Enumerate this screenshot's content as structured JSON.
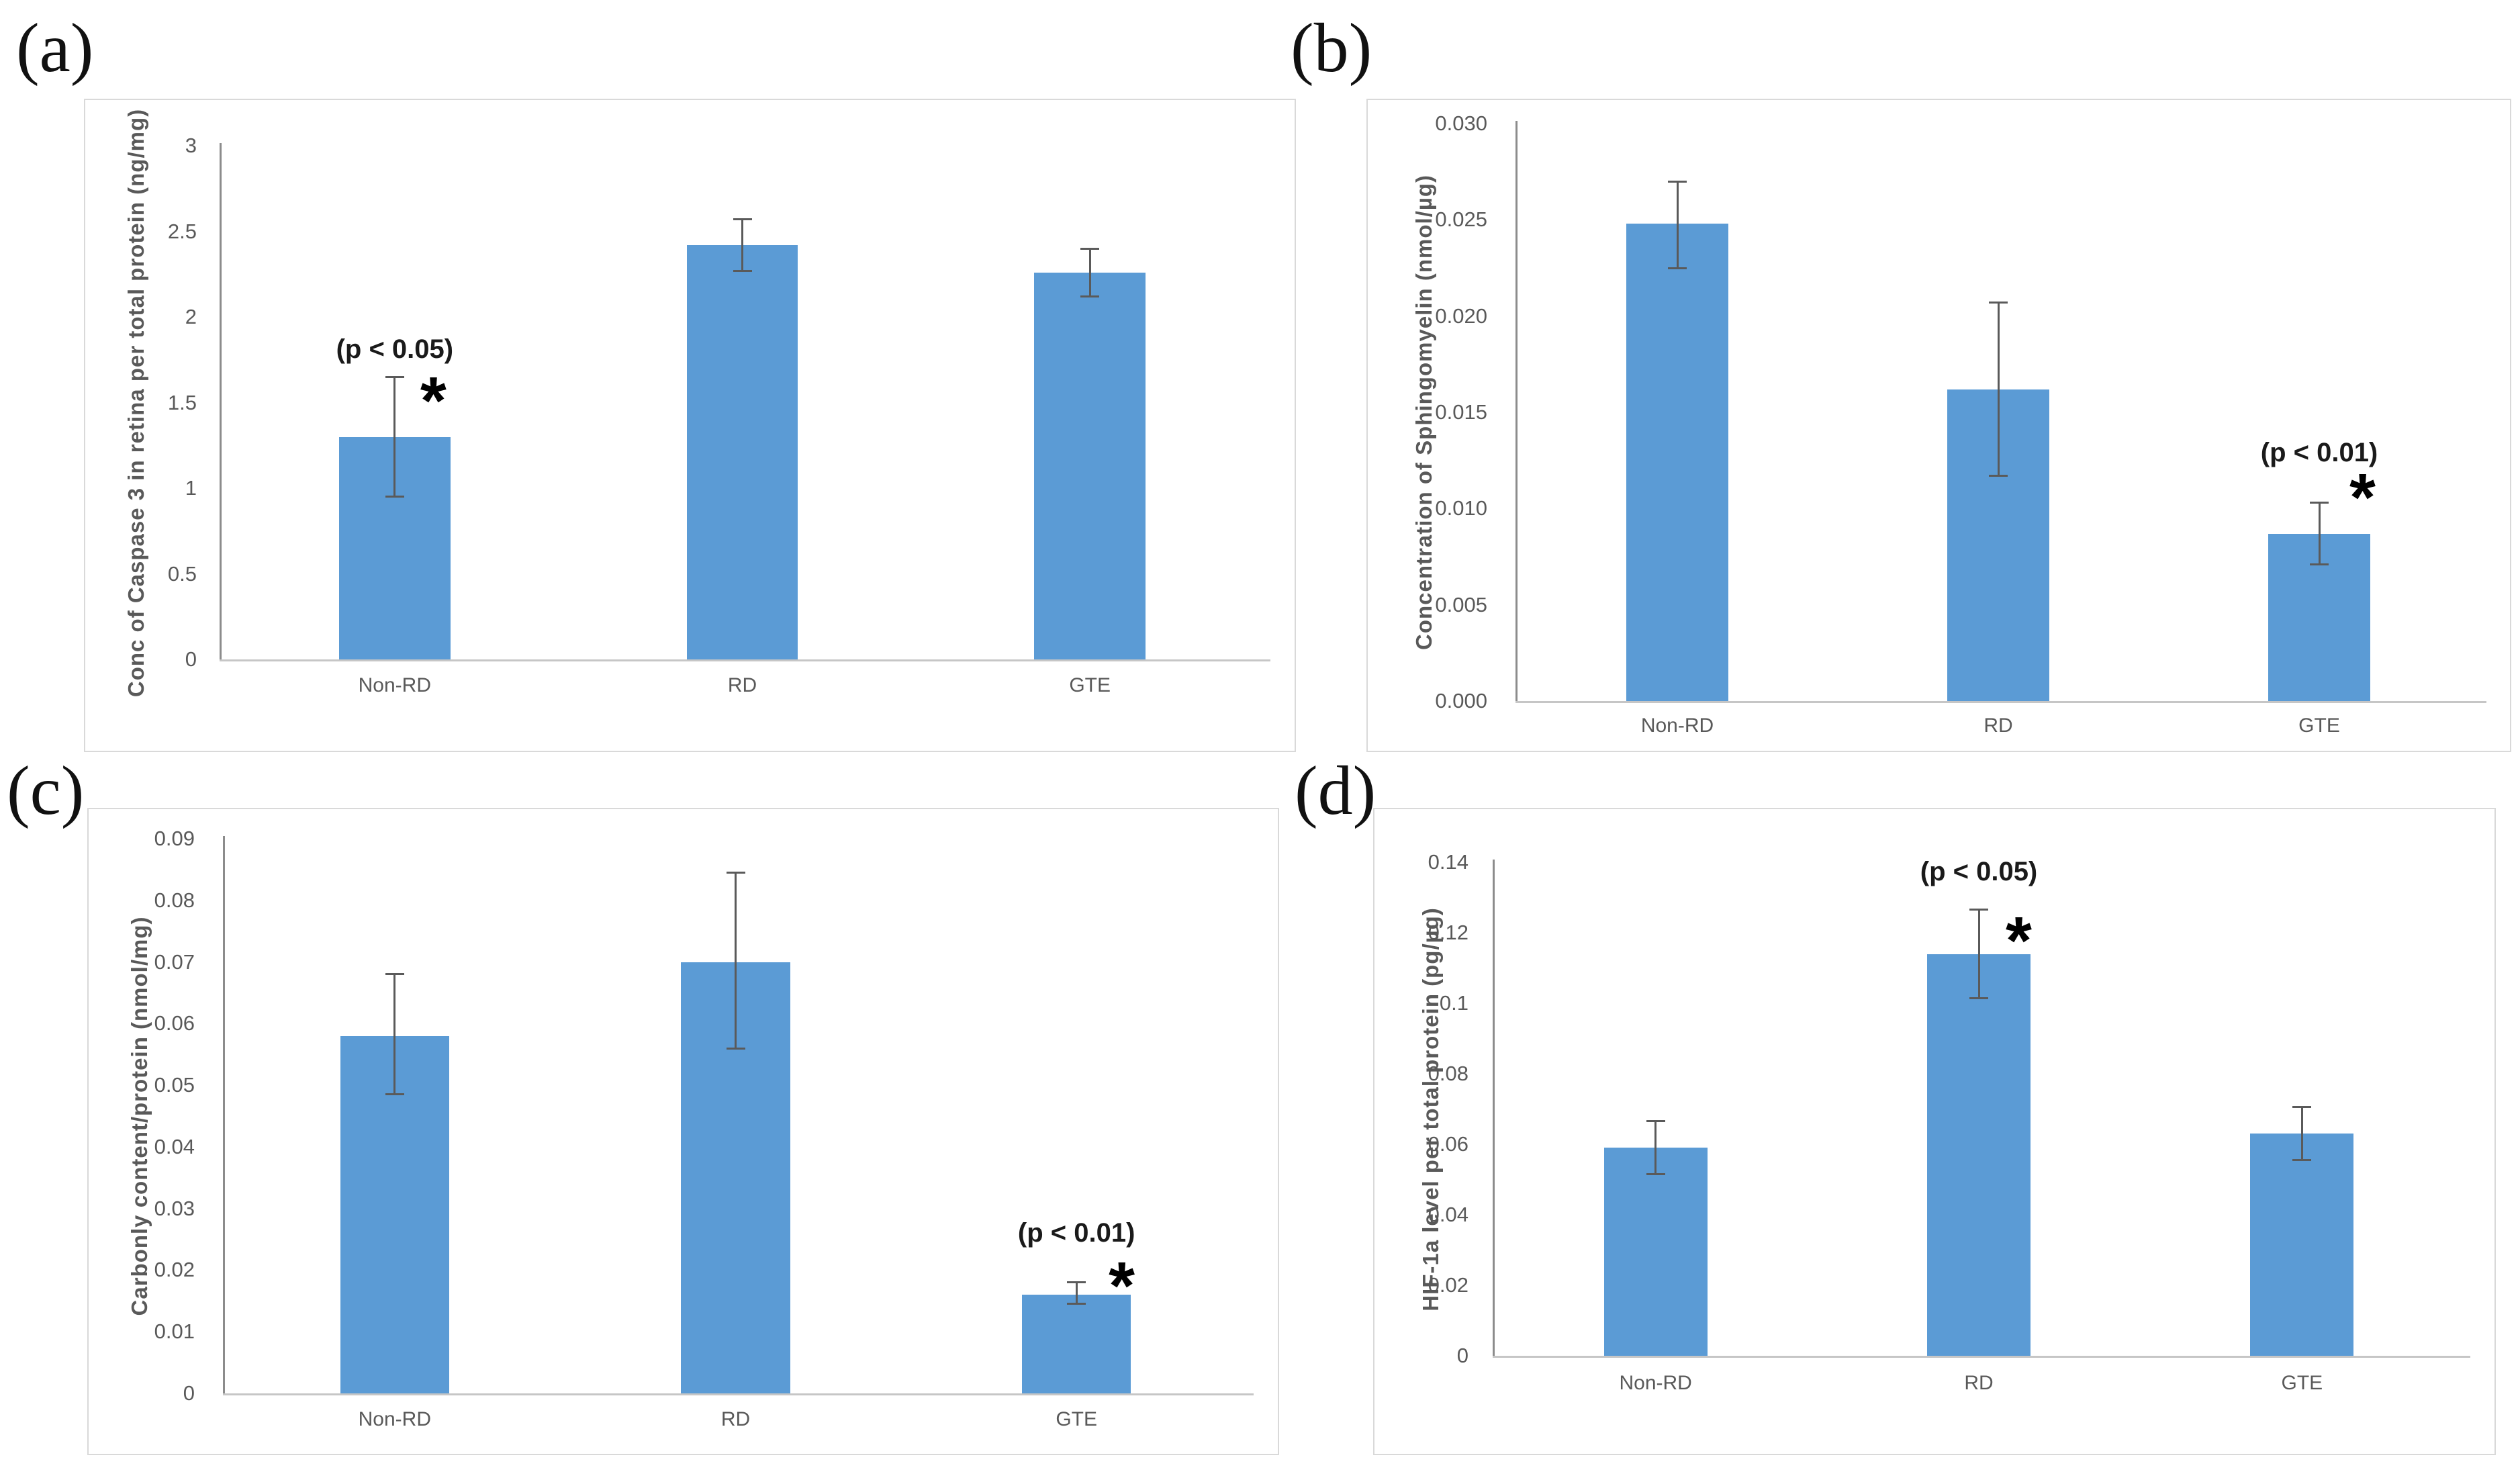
{
  "figure": {
    "panels": [
      {
        "label": "(a)"
      },
      {
        "label": "(b)"
      },
      {
        "label": "(c)"
      },
      {
        "label": "(d)"
      }
    ]
  },
  "colors": {
    "bar_fill": "#5B9BD5",
    "error_bar": "#5a5a5a",
    "y_axis_line": "#8c8c8c",
    "x_axis_line": "#c6c6c6",
    "tick_text": "#595959",
    "axis_title_text": "#595959",
    "panel_border": "#d9d9d9",
    "annotation_text": "#1a1a1a"
  },
  "chart_data": [
    {
      "type": "bar",
      "panel": "a",
      "title": "",
      "categories": [
        "Non-RD",
        "RD",
        "GTE"
      ],
      "values": [
        1.3,
        2.42,
        2.26
      ],
      "errors_minus": [
        0.35,
        0.15,
        0.14
      ],
      "errors_plus": [
        0.35,
        0.15,
        0.14
      ],
      "ylabel": "Conc of Caspase 3 in retina per total protein (ng/mg)",
      "xlabel": "",
      "ylim": [
        0,
        3
      ],
      "yticks": [
        0,
        0.5,
        1,
        1.5,
        2,
        2.5,
        3
      ],
      "ytick_labels": [
        "0",
        "0.5",
        "1",
        "1.5",
        "2",
        "2.5",
        "3"
      ],
      "grid": false,
      "legend": "none",
      "annotation": {
        "text": "(p < 0.05)",
        "marker": "*",
        "category": "Non-RD",
        "bar_index": 0
      }
    },
    {
      "type": "bar",
      "panel": "b",
      "title": "",
      "categories": [
        "Non-RD",
        "RD",
        "GTE"
      ],
      "values": [
        0.0248,
        0.0162,
        0.0087
      ],
      "errors_minus": [
        0.0023,
        0.0045,
        0.0016
      ],
      "errors_plus": [
        0.0022,
        0.0045,
        0.0016
      ],
      "ylabel": "Concentration of Sphingomyelin (nmol/µg)",
      "xlabel": "",
      "ylim": [
        0,
        0.03
      ],
      "yticks": [
        0,
        0.005,
        0.01,
        0.015,
        0.02,
        0.025,
        0.03
      ],
      "ytick_labels": [
        "0.000",
        "0.005",
        "0.010",
        "0.015",
        "0.020",
        "0.025",
        "0.030"
      ],
      "grid": false,
      "legend": "none",
      "annotation": {
        "text": "(p < 0.01)",
        "marker": "*",
        "category": "GTE",
        "bar_index": 2
      }
    },
    {
      "type": "bar",
      "panel": "c",
      "title": "",
      "categories": [
        "Non-RD",
        "RD",
        "GTE"
      ],
      "values": [
        0.058,
        0.07,
        0.016
      ],
      "errors_minus": [
        0.0095,
        0.014,
        0.0015
      ],
      "errors_plus": [
        0.01,
        0.0145,
        0.002
      ],
      "ylabel": "Carbonly content/protein (nmol/mg)",
      "xlabel": "",
      "ylim": [
        0,
        0.09
      ],
      "yticks": [
        0,
        0.01,
        0.02,
        0.03,
        0.04,
        0.05,
        0.06,
        0.07,
        0.08,
        0.09
      ],
      "ytick_labels": [
        "0",
        "0.01",
        "0.02",
        "0.03",
        "0.04",
        "0.05",
        "0.06",
        "0.07",
        "0.08",
        "0.09"
      ],
      "grid": false,
      "legend": "none",
      "annotation": {
        "text": "(p < 0.01)",
        "marker": "*",
        "category": "GTE",
        "bar_index": 2
      }
    },
    {
      "type": "bar",
      "panel": "d",
      "title": "",
      "categories": [
        "Non-RD",
        "RD",
        "GTE"
      ],
      "values": [
        0.059,
        0.114,
        0.063
      ],
      "errors_minus": [
        0.0075,
        0.0125,
        0.0075
      ],
      "errors_plus": [
        0.0075,
        0.0125,
        0.0075
      ],
      "ylabel": "HIF-1a level per total protein (pg/µg)",
      "xlabel": "",
      "ylim": [
        0,
        0.14
      ],
      "yticks": [
        0,
        0.02,
        0.04,
        0.06,
        0.08,
        0.1,
        0.12,
        0.14
      ],
      "ytick_labels": [
        "0",
        "0.02",
        "0.04",
        "0.06",
        "0.08",
        "0.1",
        "0.12",
        "0.14"
      ],
      "grid": false,
      "legend": "none",
      "annotation": {
        "text": "(p < 0.05)",
        "marker": "*",
        "category": "RD",
        "bar_index": 1
      }
    }
  ]
}
